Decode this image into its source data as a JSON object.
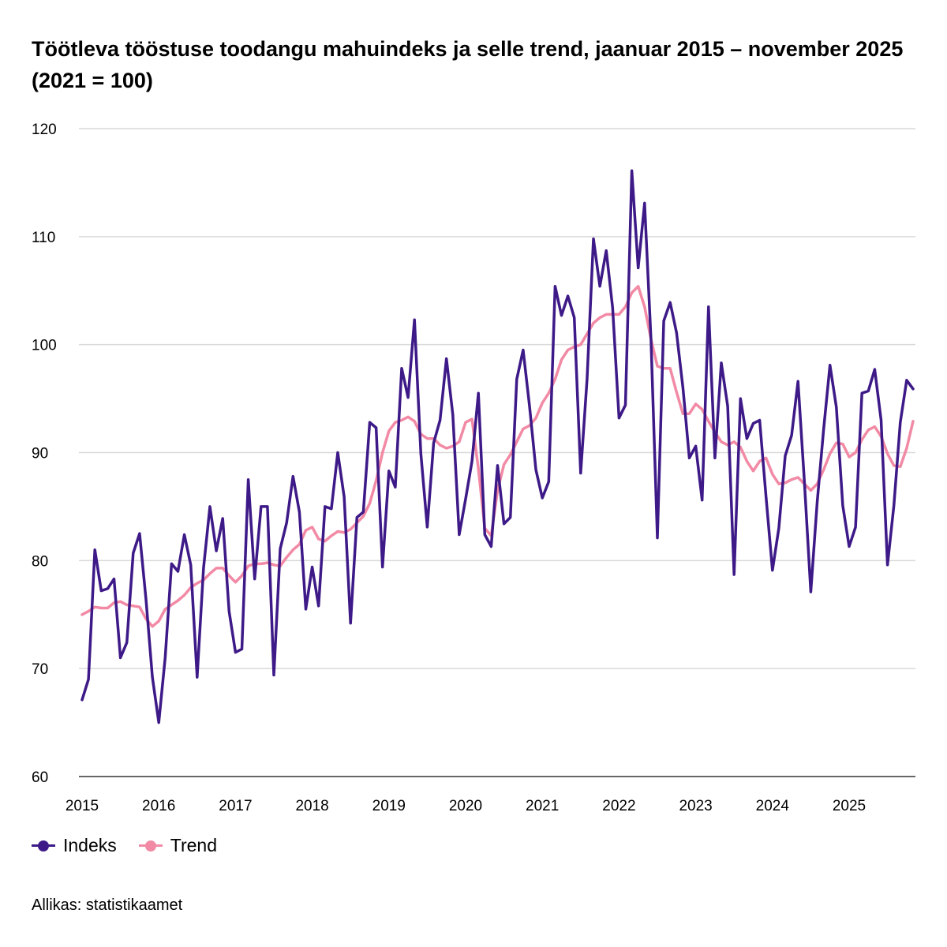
{
  "title": "Töötleva tööstuse toodangu mahuindeks ja selle trend, jaanuar 2015 – november 2025 (2021 = 100)",
  "source": "Allikas: statistikaamet",
  "colors": {
    "indeks": "#3d1a87",
    "trend": "#f28aa5",
    "grid": "#d9d9d9"
  },
  "chart_data": {
    "type": "line",
    "title": "Töötleva tööstuse toodangu mahuindeks ja selle trend, jaanuar 2015 – november 2025 (2021 = 100)",
    "x_start": "2015-01",
    "x_end": "2025-11",
    "frequency": "monthly",
    "ylim": [
      60,
      120
    ],
    "yticks": [
      "60",
      "70",
      "80",
      "90",
      "100",
      "110",
      "120"
    ],
    "xticks": [
      "2015",
      "2016",
      "2017",
      "2018",
      "2019",
      "2020",
      "2021",
      "2022",
      "2023",
      "2024",
      "2025"
    ],
    "grid": true,
    "legend": "bottom-left",
    "series": [
      {
        "name": "Indeks",
        "values": [
          67.1,
          69.0,
          81.0,
          77.2,
          77.4,
          78.3,
          71.0,
          72.4,
          80.7,
          82.5,
          76.4,
          69.2,
          65.0,
          71.0,
          79.7,
          79.0,
          82.4,
          79.6,
          69.2,
          79.3,
          85.0,
          80.9,
          83.9,
          75.3,
          71.5,
          71.8,
          87.5,
          78.3,
          85.0,
          85.0,
          69.4,
          81.1,
          83.5,
          87.8,
          84.5,
          75.5,
          79.4,
          75.8,
          85.0,
          84.8,
          90.0,
          85.9,
          74.2,
          84.0,
          84.5,
          92.8,
          92.3,
          79.4,
          88.3,
          86.8,
          97.8,
          95.1,
          102.3,
          89.9,
          83.1,
          90.9,
          93.0,
          98.7,
          93.5,
          82.4,
          85.7,
          89.2,
          95.5,
          82.4,
          81.3,
          88.8,
          83.4,
          84.0,
          96.8,
          99.5,
          94.3,
          88.4,
          85.8,
          87.3,
          105.4,
          102.7,
          104.5,
          102.5,
          88.1,
          96.8,
          109.8,
          105.4,
          108.7,
          103.4,
          93.2,
          94.4,
          116.1,
          107.1,
          113.1,
          100.5,
          82.1,
          102.2,
          103.9,
          101.1,
          96.0,
          89.5,
          90.6,
          85.6,
          103.5,
          89.5,
          98.3,
          94.3,
          78.7,
          95.0,
          91.3,
          92.7,
          93.0,
          85.9,
          79.1,
          83.0,
          89.7,
          91.6,
          96.6,
          87.3,
          77.1,
          85.4,
          92.1,
          98.1,
          94.2,
          85.1,
          81.3,
          83.1,
          95.5,
          95.7,
          97.7,
          93.0,
          79.6,
          85.1,
          92.8,
          96.7,
          95.9
        ]
      },
      {
        "name": "Trend",
        "values": [
          75.0,
          75.3,
          75.7,
          75.6,
          75.6,
          76.1,
          76.2,
          75.9,
          75.8,
          75.7,
          74.6,
          73.9,
          74.4,
          75.5,
          75.9,
          76.3,
          76.8,
          77.5,
          77.9,
          78.2,
          78.8,
          79.3,
          79.3,
          78.6,
          78.0,
          78.6,
          79.5,
          79.7,
          79.7,
          79.8,
          79.6,
          79.5,
          80.3,
          81.0,
          81.5,
          82.8,
          83.1,
          82.0,
          81.8,
          82.3,
          82.7,
          82.6,
          82.9,
          83.5,
          84.1,
          85.3,
          87.4,
          90.0,
          92.0,
          92.8,
          93.0,
          93.3,
          92.9,
          91.7,
          91.3,
          91.3,
          90.7,
          90.4,
          90.6,
          91.0,
          92.8,
          93.1,
          88.5,
          83.0,
          82.3,
          86.5,
          88.9,
          89.8,
          91.0,
          92.2,
          92.5,
          93.2,
          94.6,
          95.5,
          96.8,
          98.6,
          99.5,
          99.8,
          100.0,
          101.0,
          102.0,
          102.5,
          102.8,
          102.8,
          102.8,
          103.5,
          104.8,
          105.4,
          103.5,
          100.5,
          98.0,
          97.8,
          97.8,
          95.6,
          93.6,
          93.6,
          94.5,
          94.0,
          92.9,
          91.9,
          91.0,
          90.7,
          91.0,
          90.5,
          89.2,
          88.3,
          89.2,
          89.5,
          88.0,
          87.1,
          87.2,
          87.5,
          87.7,
          87.1,
          86.5,
          87.1,
          88.4,
          89.9,
          90.9,
          90.8,
          89.6,
          90.0,
          91.2,
          92.1,
          92.4,
          91.5,
          89.9,
          88.8,
          88.7,
          90.4,
          92.9
        ]
      }
    ]
  }
}
